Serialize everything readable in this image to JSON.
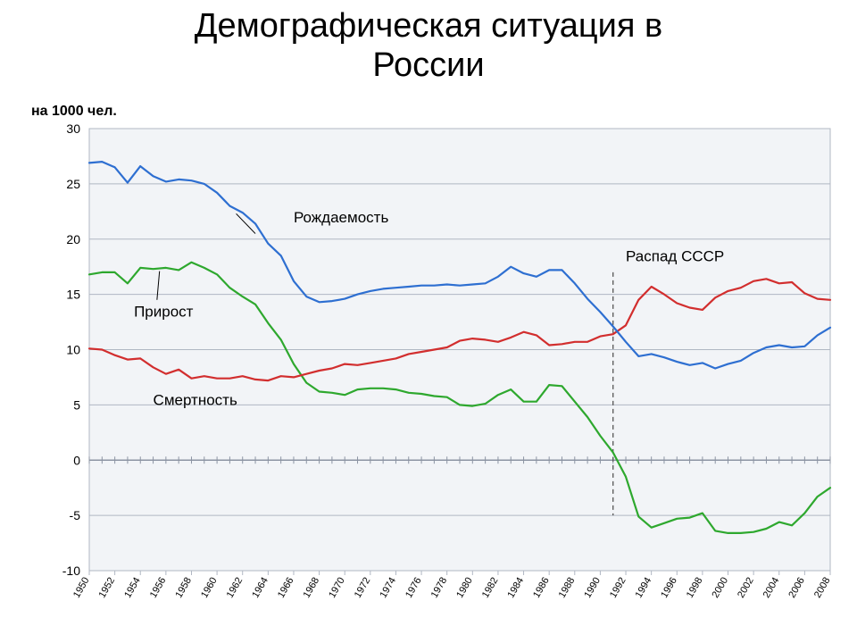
{
  "title_line1": "Демографическая ситуация в",
  "title_line2": "России",
  "chart": {
    "type": "line",
    "y_axis_label": "на 1000 чел.",
    "background_color": "#f2f4f7",
    "plot_border_color": "#b0b7c3",
    "grid_color_major": "#b0b7c3",
    "grid_color_zero": "#8c94a3",
    "minor_tick_color": "#8c94a3",
    "ylim": [
      -10,
      30
    ],
    "ytick_step": 5,
    "yticks": [
      -10,
      -5,
      0,
      5,
      10,
      15,
      20,
      25,
      30
    ],
    "x_years": [
      1950,
      1952,
      1954,
      1956,
      1958,
      1960,
      1962,
      1964,
      1966,
      1968,
      1970,
      1972,
      1974,
      1976,
      1978,
      1980,
      1982,
      1984,
      1986,
      1988,
      1990,
      1992,
      1994,
      1996,
      1998,
      2000,
      2002,
      2004,
      2006,
      2008
    ],
    "x_range": [
      1950,
      2008
    ],
    "event_marker": {
      "label": "Распад СССР",
      "x": 1991,
      "line_dash": "5,4",
      "color": "#555555",
      "y_extent": [
        -5,
        17
      ]
    },
    "series": {
      "birth": {
        "label": "Рождаемость",
        "color": "#2e6fd1",
        "line_width": 2.2,
        "label_pos": {
          "x": 1966,
          "y": 21.5
        },
        "pointer": {
          "from_x": 1963,
          "from_y": 20.5,
          "to_x": 1961.5,
          "to_y": 22.3
        },
        "data": [
          [
            1950,
            26.9
          ],
          [
            1951,
            27.0
          ],
          [
            1952,
            26.5
          ],
          [
            1953,
            25.1
          ],
          [
            1954,
            26.6
          ],
          [
            1955,
            25.7
          ],
          [
            1956,
            25.2
          ],
          [
            1957,
            25.4
          ],
          [
            1958,
            25.3
          ],
          [
            1959,
            25.0
          ],
          [
            1960,
            24.2
          ],
          [
            1961,
            23.0
          ],
          [
            1962,
            22.4
          ],
          [
            1963,
            21.4
          ],
          [
            1964,
            19.6
          ],
          [
            1965,
            18.5
          ],
          [
            1966,
            16.2
          ],
          [
            1967,
            14.8
          ],
          [
            1968,
            14.3
          ],
          [
            1969,
            14.4
          ],
          [
            1970,
            14.6
          ],
          [
            1971,
            15.0
          ],
          [
            1972,
            15.3
          ],
          [
            1973,
            15.5
          ],
          [
            1974,
            15.6
          ],
          [
            1975,
            15.7
          ],
          [
            1976,
            15.8
          ],
          [
            1977,
            15.8
          ],
          [
            1978,
            15.9
          ],
          [
            1979,
            15.8
          ],
          [
            1980,
            15.9
          ],
          [
            1981,
            16.0
          ],
          [
            1982,
            16.6
          ],
          [
            1983,
            17.5
          ],
          [
            1984,
            16.9
          ],
          [
            1985,
            16.6
          ],
          [
            1986,
            17.2
          ],
          [
            1987,
            17.2
          ],
          [
            1988,
            16.0
          ],
          [
            1989,
            14.6
          ],
          [
            1990,
            13.4
          ],
          [
            1991,
            12.1
          ],
          [
            1992,
            10.7
          ],
          [
            1993,
            9.4
          ],
          [
            1994,
            9.6
          ],
          [
            1995,
            9.3
          ],
          [
            1996,
            8.9
          ],
          [
            1997,
            8.6
          ],
          [
            1998,
            8.8
          ],
          [
            1999,
            8.3
          ],
          [
            2000,
            8.7
          ],
          [
            2001,
            9.0
          ],
          [
            2002,
            9.7
          ],
          [
            2003,
            10.2
          ],
          [
            2004,
            10.4
          ],
          [
            2005,
            10.2
          ],
          [
            2006,
            10.3
          ],
          [
            2007,
            11.3
          ],
          [
            2008,
            12.0
          ]
        ]
      },
      "death": {
        "label": "Смертность",
        "color": "#d22e2e",
        "line_width": 2.2,
        "label_pos": {
          "x": 1955,
          "y": 5.0
        },
        "data": [
          [
            1950,
            10.1
          ],
          [
            1951,
            10.0
          ],
          [
            1952,
            9.5
          ],
          [
            1953,
            9.1
          ],
          [
            1954,
            9.2
          ],
          [
            1955,
            8.4
          ],
          [
            1956,
            7.8
          ],
          [
            1957,
            8.2
          ],
          [
            1958,
            7.4
          ],
          [
            1959,
            7.6
          ],
          [
            1960,
            7.4
          ],
          [
            1961,
            7.4
          ],
          [
            1962,
            7.6
          ],
          [
            1963,
            7.3
          ],
          [
            1964,
            7.2
          ],
          [
            1965,
            7.6
          ],
          [
            1966,
            7.5
          ],
          [
            1967,
            7.8
          ],
          [
            1968,
            8.1
          ],
          [
            1969,
            8.3
          ],
          [
            1970,
            8.7
          ],
          [
            1971,
            8.6
          ],
          [
            1972,
            8.8
          ],
          [
            1973,
            9.0
          ],
          [
            1974,
            9.2
          ],
          [
            1975,
            9.6
          ],
          [
            1976,
            9.8
          ],
          [
            1977,
            10.0
          ],
          [
            1978,
            10.2
          ],
          [
            1979,
            10.8
          ],
          [
            1980,
            11.0
          ],
          [
            1981,
            10.9
          ],
          [
            1982,
            10.7
          ],
          [
            1983,
            11.1
          ],
          [
            1984,
            11.6
          ],
          [
            1985,
            11.3
          ],
          [
            1986,
            10.4
          ],
          [
            1987,
            10.5
          ],
          [
            1988,
            10.7
          ],
          [
            1989,
            10.7
          ],
          [
            1990,
            11.2
          ],
          [
            1991,
            11.4
          ],
          [
            1992,
            12.2
          ],
          [
            1993,
            14.5
          ],
          [
            1994,
            15.7
          ],
          [
            1995,
            15.0
          ],
          [
            1996,
            14.2
          ],
          [
            1997,
            13.8
          ],
          [
            1998,
            13.6
          ],
          [
            1999,
            14.7
          ],
          [
            2000,
            15.3
          ],
          [
            2001,
            15.6
          ],
          [
            2002,
            16.2
          ],
          [
            2003,
            16.4
          ],
          [
            2004,
            16.0
          ],
          [
            2005,
            16.1
          ],
          [
            2006,
            15.1
          ],
          [
            2007,
            14.6
          ],
          [
            2008,
            14.5
          ]
        ]
      },
      "growth": {
        "label": "Прирост",
        "color": "#2ea82e",
        "line_width": 2.2,
        "label_pos": {
          "x": 1953.5,
          "y": 13.0
        },
        "pointer": {
          "from_x": 1955.5,
          "from_y": 17.1,
          "to_x": 1955.3,
          "to_y": 14.5
        },
        "data": [
          [
            1950,
            16.8
          ],
          [
            1951,
            17.0
          ],
          [
            1952,
            17.0
          ],
          [
            1953,
            16.0
          ],
          [
            1954,
            17.4
          ],
          [
            1955,
            17.3
          ],
          [
            1956,
            17.4
          ],
          [
            1957,
            17.2
          ],
          [
            1958,
            17.9
          ],
          [
            1959,
            17.4
          ],
          [
            1960,
            16.8
          ],
          [
            1961,
            15.6
          ],
          [
            1962,
            14.8
          ],
          [
            1963,
            14.1
          ],
          [
            1964,
            12.4
          ],
          [
            1965,
            10.9
          ],
          [
            1966,
            8.7
          ],
          [
            1967,
            7.0
          ],
          [
            1968,
            6.2
          ],
          [
            1969,
            6.1
          ],
          [
            1970,
            5.9
          ],
          [
            1971,
            6.4
          ],
          [
            1972,
            6.5
          ],
          [
            1973,
            6.5
          ],
          [
            1974,
            6.4
          ],
          [
            1975,
            6.1
          ],
          [
            1976,
            6.0
          ],
          [
            1977,
            5.8
          ],
          [
            1978,
            5.7
          ],
          [
            1979,
            5.0
          ],
          [
            1980,
            4.9
          ],
          [
            1981,
            5.1
          ],
          [
            1982,
            5.9
          ],
          [
            1983,
            6.4
          ],
          [
            1984,
            5.3
          ],
          [
            1985,
            5.3
          ],
          [
            1986,
            6.8
          ],
          [
            1987,
            6.7
          ],
          [
            1988,
            5.3
          ],
          [
            1989,
            3.9
          ],
          [
            1990,
            2.2
          ],
          [
            1991,
            0.7
          ],
          [
            1992,
            -1.5
          ],
          [
            1993,
            -5.1
          ],
          [
            1994,
            -6.1
          ],
          [
            1995,
            -5.7
          ],
          [
            1996,
            -5.3
          ],
          [
            1997,
            -5.2
          ],
          [
            1998,
            -4.8
          ],
          [
            1999,
            -6.4
          ],
          [
            2000,
            -6.6
          ],
          [
            2001,
            -6.6
          ],
          [
            2002,
            -6.5
          ],
          [
            2003,
            -6.2
          ],
          [
            2004,
            -5.6
          ],
          [
            2005,
            -5.9
          ],
          [
            2006,
            -4.8
          ],
          [
            2007,
            -3.3
          ],
          [
            2008,
            -2.5
          ]
        ]
      }
    }
  }
}
